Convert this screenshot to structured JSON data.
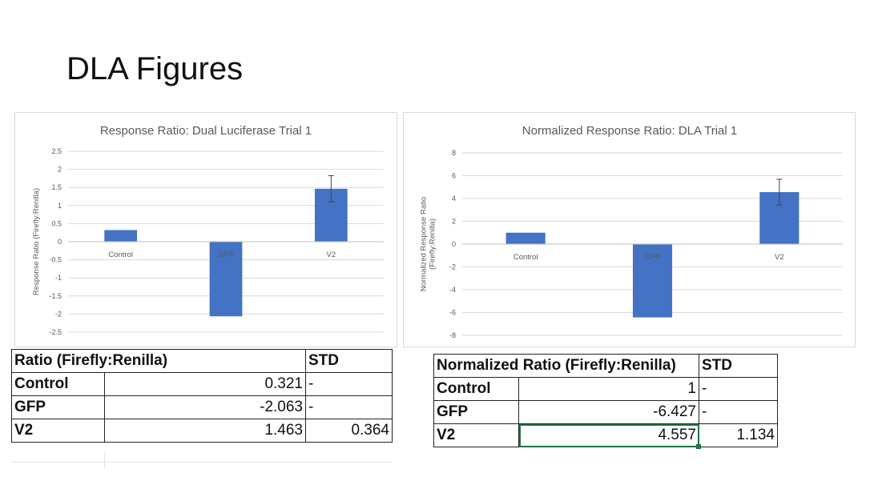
{
  "slide": {
    "title": "DLA Figures"
  },
  "chart_data": [
    {
      "type": "bar",
      "title": "Response Ratio: Dual Luciferase Trial 1",
      "xlabel": "",
      "ylabel": "Response Ratio (Firefly:Renilla)",
      "categories": [
        "Control",
        "GFP",
        "V2"
      ],
      "series": [
        {
          "values": [
            0.321,
            -2.063,
            1.463
          ]
        }
      ],
      "error": [
        0,
        0,
        0.364
      ],
      "ylim": [
        -2.5,
        2.5
      ],
      "ticks": [
        "2.5",
        "2",
        "1.5",
        "1",
        "0.5",
        "0",
        "-0.5",
        "-1",
        "-1.5",
        "-2",
        "-2.5"
      ],
      "grid": true,
      "bar_color": "#4472c4"
    },
    {
      "type": "bar",
      "title": "Normalized Response Ratio: DLA Trial 1",
      "xlabel": "",
      "ylabel": "Normalized Response Ratio (Firefly:Renilla)",
      "ylabel_lines": [
        "Normalized Response Ratio",
        "(Firefly:Renilla)"
      ],
      "categories": [
        "Control",
        "GFP",
        "V2"
      ],
      "series": [
        {
          "values": [
            1,
            -6.427,
            4.557
          ]
        }
      ],
      "error": [
        0,
        0,
        1.134
      ],
      "ylim": [
        -8,
        8
      ],
      "ticks": [
        "8",
        "6",
        "4",
        "2",
        "0",
        "-2",
        "-4",
        "-6",
        "-8"
      ],
      "grid": true,
      "bar_color": "#4472c4"
    }
  ],
  "table1": {
    "header": "Ratio (Firefly:Renilla)",
    "std_header": "STD",
    "rows": [
      {
        "label": "Control",
        "value": "0.321",
        "std": "-"
      },
      {
        "label": "GFP",
        "value": "-2.063",
        "std": "-"
      },
      {
        "label": "V2",
        "value": "1.463",
        "std": "0.364"
      }
    ]
  },
  "table2": {
    "header": "Normalized Ratio (Firefly:Renilla)",
    "std_header": "STD",
    "rows": [
      {
        "label": "Control",
        "value": "1",
        "std": "-"
      },
      {
        "label": "GFP",
        "value": "-6.427",
        "std": "-"
      },
      {
        "label": "V2",
        "value": "4.557",
        "std": "1.134"
      }
    ]
  }
}
